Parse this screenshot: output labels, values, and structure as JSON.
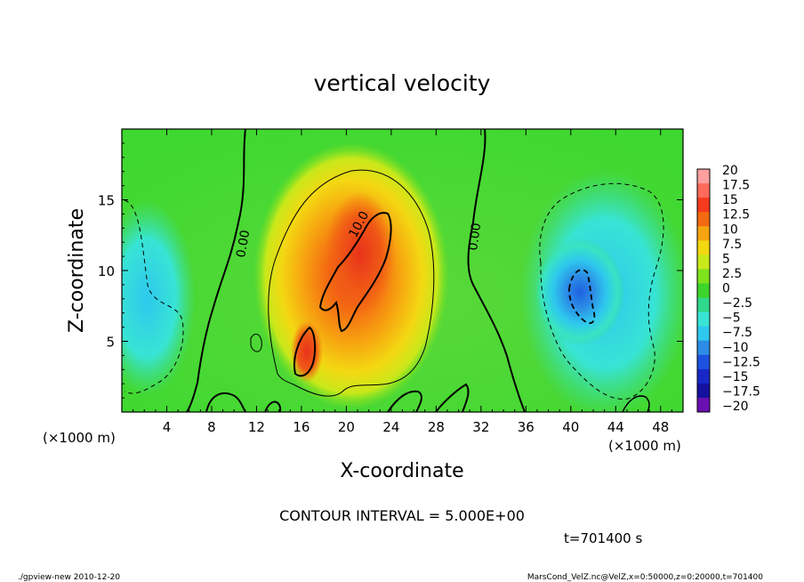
{
  "chart_data": {
    "type": "heatmap",
    "title": "vertical velocity",
    "xlabel": "X-coordinate",
    "ylabel": "Z-coordinate",
    "x_unit_label": "(×1000 m)",
    "y_unit_label": "(×1000 m)",
    "xlim": [
      0,
      50
    ],
    "ylim": [
      0,
      20
    ],
    "x_ticks": [
      4,
      8,
      12,
      16,
      20,
      24,
      28,
      32,
      36,
      40,
      44,
      48
    ],
    "y_ticks": [
      5,
      10,
      15
    ],
    "contour_interval_text": "CONTOUR INTERVAL = 5.000E+00",
    "contour_labels": [
      {
        "text": "0.00",
        "x": 10.5,
        "z": 12.0
      },
      {
        "text": "10.0",
        "x": 21.5,
        "z": 13.2
      },
      {
        "text": "0.00",
        "x": 31.2,
        "z": 12.5
      }
    ],
    "features": [
      {
        "kind": "updraft",
        "center_x": 21,
        "center_z": 12,
        "max": 15
      },
      {
        "kind": "downdraft",
        "center_x": 40.5,
        "center_z": 8.5,
        "min": -12.5
      },
      {
        "kind": "downdraft",
        "center_x": 2,
        "center_z": 6,
        "min": -7.5
      }
    ],
    "colorbar": {
      "labels": [
        "20",
        "17.5",
        "15",
        "12.5",
        "10",
        "7.5",
        "5",
        "2.5",
        "0",
        "-2.5",
        "-5",
        "-7.5",
        "-10",
        "-12.5",
        "-15",
        "-17.5",
        "-20"
      ],
      "colors": [
        "#ffa0a0",
        "#ff6a5a",
        "#f53a1e",
        "#f46a12",
        "#f7a410",
        "#f3d812",
        "#c8e81a",
        "#7ee21c",
        "#3fd42a",
        "#30d88a",
        "#38e4d4",
        "#2ec8ee",
        "#2c8ce6",
        "#1d52e0",
        "#1828c8",
        "#1410a0",
        "#6a10b0"
      ]
    },
    "colors": {
      "zero_bg": "#4fd83a",
      "positive": "#f47012",
      "negative": "#2e9ae6",
      "contour": "#000000"
    }
  },
  "footer": {
    "time": "t=701400 s",
    "left": "./gpview-new  2010-12-20",
    "right": "MarsCond_VelZ.nc@VelZ,x=0:50000,z=0:20000,t=701400"
  }
}
